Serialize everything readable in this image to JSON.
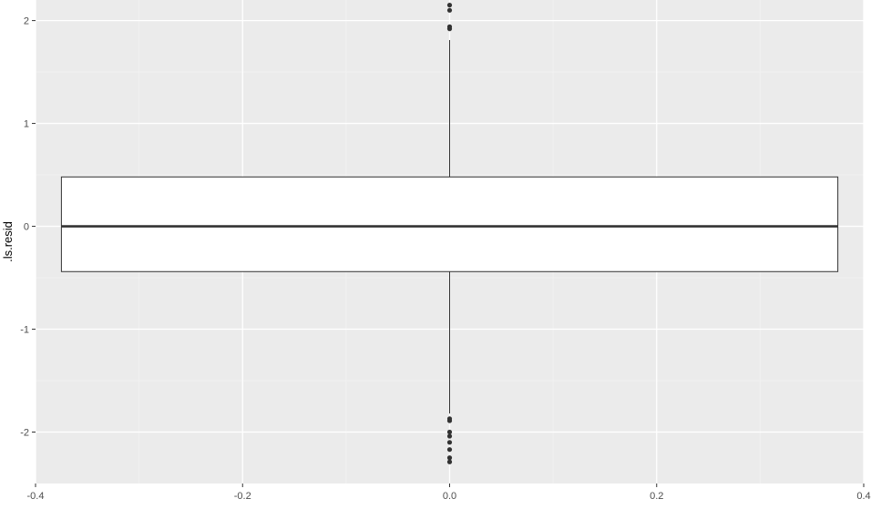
{
  "chart_data": {
    "type": "boxplot",
    "xlabel": "",
    "ylabel": ".ls.resid",
    "xlim": [
      -0.4,
      0.4
    ],
    "ylim": [
      -2.5,
      2.2
    ],
    "x_ticks": [
      -0.4,
      -0.2,
      0.0,
      0.2,
      0.4
    ],
    "x_tick_labels": [
      "-0.4",
      "-0.2",
      "0.0",
      "0.2",
      "0.4"
    ],
    "y_ticks": [
      -2,
      -1,
      0,
      1,
      2
    ],
    "y_tick_labels": [
      "-2",
      "-1",
      "0",
      "1",
      "2"
    ],
    "grid": true,
    "box": {
      "x": 0.0,
      "x_start": -0.375,
      "x_end": 0.375,
      "q1": -0.44,
      "median": 0.0,
      "q3": 0.48,
      "whisker_low": -1.82,
      "whisker_high": 1.81
    },
    "outliers": [
      2.15,
      2.1,
      1.94,
      1.92,
      -1.87,
      -1.89,
      -2.0,
      -2.04,
      -2.1,
      -2.17,
      -2.25,
      -2.29
    ],
    "colors": {
      "panel_background": "#ebebeb",
      "grid_major": "#ffffff",
      "grid_minor": "#f2f2f2",
      "box_fill": "#ffffff",
      "box_stroke": "#333333",
      "outlier": "#333333"
    }
  }
}
